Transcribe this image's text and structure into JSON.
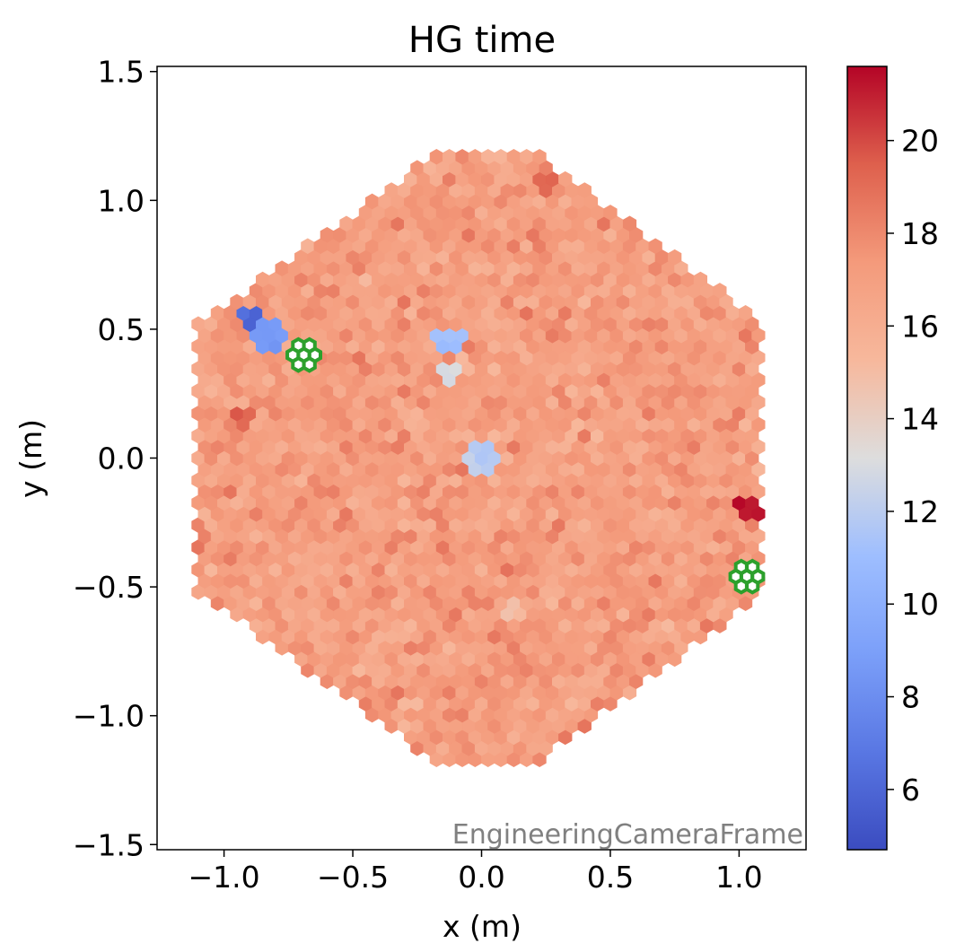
{
  "chart_data": {
    "type": "heatmap",
    "title": "HG time",
    "xlabel": "x  (m)",
    "ylabel": "y  (m)",
    "xlim": [
      -1.26,
      1.26
    ],
    "ylim": [
      -1.52,
      1.52
    ],
    "x_ticks": [
      -1.0,
      -0.5,
      0.0,
      0.5,
      1.0
    ],
    "x_tick_labels": [
      "−1.0",
      "−0.5",
      "0.0",
      "0.5",
      "1.0"
    ],
    "y_ticks": [
      -1.5,
      -1.0,
      -0.5,
      0.0,
      0.5,
      1.0,
      1.5
    ],
    "y_tick_labels": [
      "−1.5",
      "−1.0",
      "−0.5",
      "0.0",
      "0.5",
      "1.0",
      "1.5"
    ],
    "grid": false,
    "colormap": "coolwarm",
    "colorbar": {
      "range": [
        4.7,
        21.6
      ],
      "ticks": [
        6,
        8,
        10,
        12,
        14,
        16,
        18,
        20
      ],
      "tick_labels": [
        "6",
        "8",
        "10",
        "12",
        "14",
        "16",
        "18",
        "20"
      ]
    },
    "camera": {
      "shape": "hexagon",
      "vertices": [
        [
          -0.19,
          1.17
        ],
        [
          0.23,
          1.17
        ],
        [
          1.1,
          0.52
        ],
        [
          1.1,
          -0.52
        ],
        [
          0.23,
          -1.17
        ],
        [
          -0.19,
          -1.17
        ],
        [
          -1.1,
          -0.52
        ],
        [
          -1.1,
          0.52
        ]
      ],
      "pixel_pitch": 0.05,
      "base_value": 17.0,
      "value_spread": 1.4
    },
    "regions": [
      {
        "x": -0.9,
        "y": 0.54,
        "r": 0.05,
        "value": 6.2
      },
      {
        "x": -0.83,
        "y": 0.47,
        "r": 0.06,
        "value": 8.5
      },
      {
        "x": -0.12,
        "y": 0.46,
        "r": 0.06,
        "value": 11.0
      },
      {
        "x": -0.12,
        "y": 0.33,
        "r": 0.05,
        "value": 13.0
      },
      {
        "x": 0.0,
        "y": 0.0,
        "r": 0.06,
        "value": 12.0
      },
      {
        "x": 1.04,
        "y": -0.19,
        "r": 0.05,
        "value": 21.5
      },
      {
        "x": -0.92,
        "y": 0.16,
        "r": 0.04,
        "value": 19.5
      },
      {
        "x": 0.25,
        "y": 1.06,
        "r": 0.05,
        "value": 19.3
      },
      {
        "x": 0.12,
        "y": -0.6,
        "r": 0.04,
        "value": 15.0
      }
    ],
    "masked_modules": [
      {
        "x": -0.69,
        "y": 0.4
      },
      {
        "x": 1.03,
        "y": -0.46
      }
    ],
    "masked_color": "#2ca02c",
    "frame_label": "EngineeringCameraFrame"
  }
}
